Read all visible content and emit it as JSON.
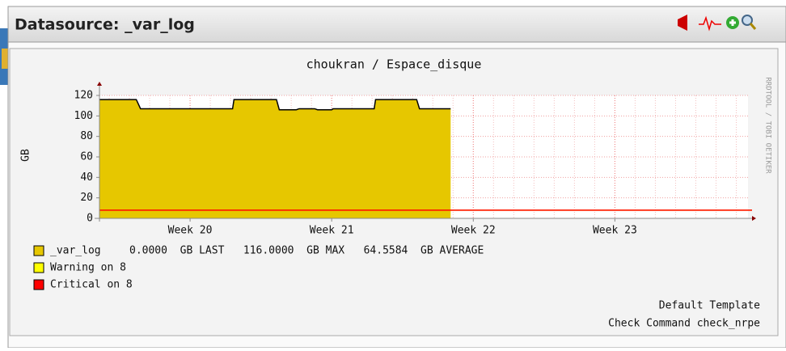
{
  "header": {
    "title": "Datasource: _var_log"
  },
  "chart_data": {
    "type": "area",
    "title": "choukran / Espace_disque",
    "y_label": "GB",
    "side_label": "RRDTOOL / TOBI OETIKER",
    "xlim": [
      19.36,
      23.94
    ],
    "xticks": [
      {
        "value": 20,
        "label": "Week 20"
      },
      {
        "value": 21,
        "label": "Week 21"
      },
      {
        "value": 22,
        "label": "Week 22"
      },
      {
        "value": 23,
        "label": "Week 23"
      }
    ],
    "ylim": [
      0,
      120
    ],
    "yticks": [
      0,
      20,
      40,
      60,
      80,
      100,
      120
    ],
    "grid": true,
    "series": [
      {
        "name": "_var_log",
        "color": "#e6c700",
        "legend_text": "0.0000  GB LAST   116.0000  GB MAX   64.5584  GB AVERAGE",
        "x": [
          19.36,
          19.62,
          19.65,
          20.3,
          20.31,
          20.61,
          20.63,
          20.75,
          20.77,
          20.88,
          20.9,
          21.0,
          21.01,
          21.3,
          21.31,
          21.6,
          21.62,
          21.84
        ],
        "values": [
          116,
          116,
          107,
          107,
          116,
          116,
          106,
          106,
          107,
          107,
          106,
          106,
          107,
          107,
          116,
          116,
          107,
          107
        ]
      }
    ],
    "thresholds": [
      {
        "name": "Warning on 8",
        "color": "#ffff00",
        "value": 8
      },
      {
        "name": "Critical on 8",
        "color": "#ff0000",
        "value": 8
      }
    ],
    "footer": [
      "Default Template",
      "Check Command check_nrpe"
    ]
  }
}
